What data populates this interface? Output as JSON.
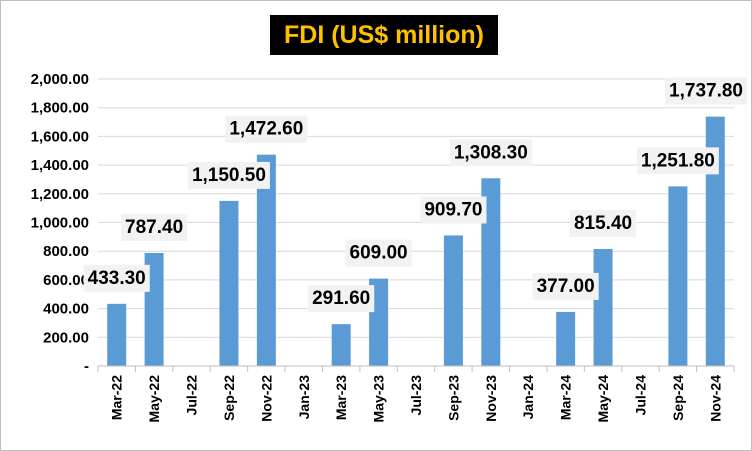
{
  "chart_data": {
    "type": "bar",
    "title": "FDI (US$ million)",
    "xlabel": "",
    "ylabel": "",
    "ylim": [
      0,
      2000
    ],
    "yticks": [
      0,
      200,
      400,
      600,
      800,
      1000,
      1200,
      1400,
      1600,
      1800,
      2000
    ],
    "ytick_labels": [
      "-",
      "200.00",
      "400.00",
      "600.00",
      "800.00",
      "1,000.00",
      "1,200.00",
      "1,400.00",
      "1,600.00",
      "1,800.00",
      "2,000.00"
    ],
    "grid": true,
    "categories": [
      "Mar-22",
      "May-22",
      "Jul-22",
      "Sep-22",
      "Nov-22",
      "Jan-23",
      "Mar-23",
      "May-23",
      "Jul-23",
      "Sep-23",
      "Nov-23",
      "Jan-24",
      "Mar-24",
      "May-24",
      "Jul-24",
      "Sep-24",
      "Nov-24"
    ],
    "values": [
      433.3,
      787.4,
      null,
      1150.5,
      1472.6,
      null,
      291.6,
      609.0,
      null,
      909.7,
      1308.3,
      null,
      377.0,
      815.4,
      null,
      1251.8,
      1737.8
    ],
    "value_labels": [
      "433.30",
      "787.40",
      null,
      "1,150.50",
      "1,472.60",
      null,
      "291.60",
      "609.00",
      null,
      "909.70",
      "1,308.30",
      null,
      "377.00",
      "815.40",
      null,
      "1,251.80",
      "1,737.80"
    ],
    "colors": {
      "bar": "#5b9bd5",
      "title_bg": "#000000",
      "title_text": "#ffc000",
      "label_bg": "#f2f2f2",
      "grid": "#d9d9d9"
    }
  }
}
